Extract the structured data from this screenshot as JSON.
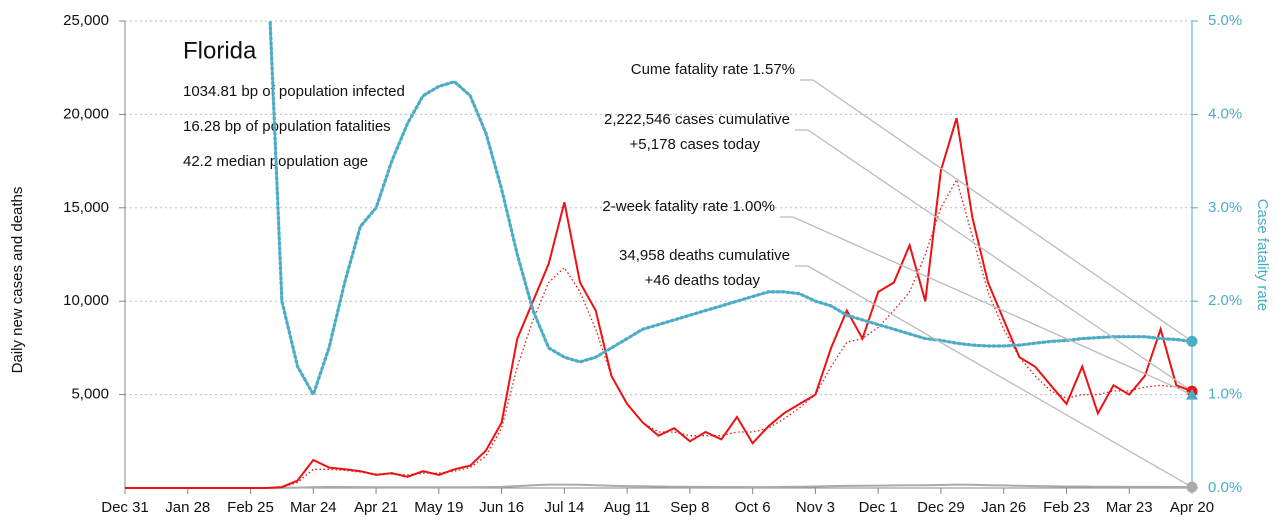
{
  "chart_data": {
    "type": "line",
    "title": "Florida",
    "subtitle_lines": [
      "1034.81 bp of population infected",
      "16.28 bp of population fatalities",
      "42.2 median population age"
    ],
    "ylabel": "Daily new cases and deaths",
    "y2label": "Case fatality rate",
    "categories": [
      "Dec 31",
      null,
      null,
      null,
      "Jan 28",
      null,
      null,
      null,
      "Feb 25",
      null,
      null,
      null,
      "Mar 24",
      null,
      null,
      null,
      "Apr 21",
      null,
      null,
      null,
      "May 19",
      null,
      null,
      null,
      "Jun 16",
      null,
      null,
      null,
      "Jul 14",
      null,
      null,
      null,
      "Aug 11",
      null,
      null,
      null,
      "Sep 8",
      null,
      null,
      null,
      "Oct 6",
      null,
      null,
      null,
      "Nov 3",
      null,
      null,
      null,
      "Dec 1",
      null,
      null,
      null,
      "Dec 29",
      null,
      null,
      null,
      "Jan 26",
      null,
      null,
      null,
      "Feb 23",
      null,
      null,
      null,
      "Mar 23",
      null,
      null,
      null,
      "Apr 20"
    ],
    "ylim": [
      0,
      25000
    ],
    "yticks": [
      {
        "value": 5000,
        "label": "5,000"
      },
      {
        "value": 10000,
        "label": "10,000"
      },
      {
        "value": 15000,
        "label": "15,000"
      },
      {
        "value": 20000,
        "label": "20,000"
      },
      {
        "value": 25000,
        "label": "25,000"
      }
    ],
    "y2lim": [
      0,
      5
    ],
    "y2ticks": [
      {
        "value": 0,
        "label": "0.0%"
      },
      {
        "value": 1,
        "label": "1.0%"
      },
      {
        "value": 2,
        "label": "2.0%"
      },
      {
        "value": 3,
        "label": "3.0%"
      },
      {
        "value": 4,
        "label": "4.0%"
      },
      {
        "value": 5,
        "label": "5.0%"
      }
    ],
    "grid": true,
    "series": [
      {
        "name": "Daily new cases",
        "color": "#ee1111",
        "style": "solid",
        "values": [
          0,
          0,
          0,
          0,
          0,
          0,
          0,
          0,
          0,
          0,
          50,
          400,
          1500,
          1100,
          1000,
          900,
          700,
          800,
          600,
          900,
          700,
          1000,
          1200,
          2000,
          3500,
          8000,
          10000,
          12000,
          15300,
          11000,
          9500,
          6000,
          4500,
          3500,
          2800,
          3200,
          2500,
          3000,
          2600,
          3800,
          2400,
          3300,
          4000,
          4500,
          5000,
          7500,
          9500,
          8000,
          10500,
          11000,
          13000,
          10000,
          17000,
          19800,
          14500,
          11000,
          9000,
          7000,
          6500,
          5500,
          4500,
          6500,
          4000,
          5500,
          5000,
          6000,
          8500,
          5500,
          5178
        ]
      },
      {
        "name": "Cases moving average",
        "color": "#ee1111",
        "style": "dotted",
        "values": [
          0,
          0,
          0,
          0,
          0,
          0,
          0,
          0,
          0,
          0,
          30,
          300,
          1000,
          1000,
          950,
          850,
          750,
          750,
          700,
          800,
          800,
          900,
          1100,
          1700,
          3200,
          6500,
          9000,
          11000,
          11800,
          10500,
          8500,
          6000,
          4500,
          3500,
          3000,
          3000,
          2800,
          2800,
          2800,
          3000,
          3000,
          3200,
          3700,
          4300,
          5000,
          6500,
          7800,
          8000,
          8600,
          9500,
          10500,
          12500,
          15000,
          16500,
          13500,
          10500,
          8500,
          7000,
          6000,
          5200,
          4800,
          5000,
          5000,
          5200,
          5200,
          5400,
          5500,
          5400,
          5300
        ]
      },
      {
        "name": "Daily deaths",
        "color": "#aaaaaa",
        "style": "solid",
        "values": [
          0,
          0,
          0,
          0,
          0,
          0,
          0,
          0,
          0,
          0,
          5,
          20,
          50,
          60,
          55,
          50,
          45,
          45,
          40,
          40,
          40,
          45,
          45,
          50,
          60,
          100,
          150,
          180,
          180,
          170,
          150,
          120,
          100,
          90,
          80,
          70,
          60,
          60,
          55,
          55,
          50,
          50,
          60,
          70,
          80,
          100,
          110,
          120,
          130,
          140,
          150,
          150,
          160,
          180,
          170,
          150,
          140,
          120,
          100,
          90,
          80,
          80,
          70,
          70,
          60,
          60,
          60,
          55,
          46
        ]
      },
      {
        "name": "Case fatality rate",
        "color": "#4bacc6",
        "style": "dotted",
        "axis": "y2",
        "values": [
          null,
          null,
          null,
          null,
          null,
          null,
          null,
          null,
          null,
          6.0,
          2.0,
          1.3,
          1.0,
          1.5,
          2.2,
          2.8,
          3.0,
          3.5,
          3.9,
          4.2,
          4.3,
          4.35,
          4.2,
          3.8,
          3.2,
          2.5,
          1.9,
          1.5,
          1.4,
          1.35,
          1.4,
          1.5,
          1.6,
          1.7,
          1.75,
          1.8,
          1.85,
          1.9,
          1.95,
          2.0,
          2.05,
          2.1,
          2.1,
          2.08,
          2.0,
          1.95,
          1.85,
          1.8,
          1.75,
          1.7,
          1.65,
          1.6,
          1.58,
          1.55,
          1.53,
          1.52,
          1.52,
          1.53,
          1.55,
          1.57,
          1.58,
          1.6,
          1.61,
          1.62,
          1.62,
          1.62,
          1.6,
          1.59,
          1.57
        ]
      }
    ],
    "annotations": [
      {
        "lines": [
          "Cume fatality rate 1.57%"
        ],
        "value": 1.57,
        "axis": "y2",
        "marker": "circle",
        "color": "#4bacc6"
      },
      {
        "lines": [
          "2,222,546 cases cumulative",
          "+5,178 cases today"
        ],
        "value": 5178,
        "axis": "y",
        "marker": "circle",
        "color": "#ee1111"
      },
      {
        "lines": [
          "2-week fatality rate 1.00%"
        ],
        "value": 1.0,
        "axis": "y2",
        "marker": "triangle",
        "color": "#4bacc6"
      },
      {
        "lines": [
          "34,958 deaths cumulative",
          "+46 deaths today"
        ],
        "value": 46,
        "axis": "y",
        "marker": "circle",
        "color": "#aaaaaa"
      }
    ]
  }
}
